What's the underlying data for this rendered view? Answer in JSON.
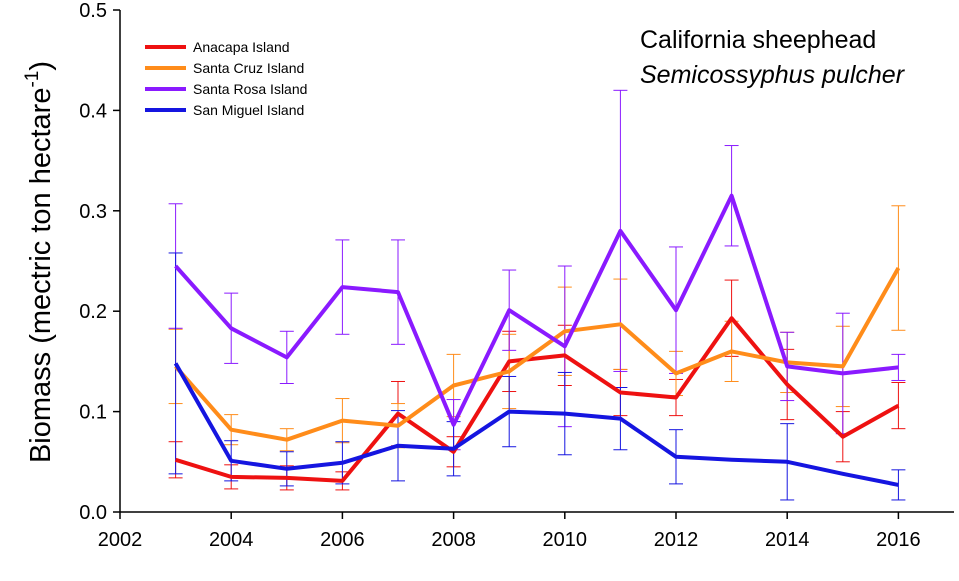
{
  "chart_data": {
    "type": "line",
    "title": "California sheephead",
    "subtitle": "Semicossyphus pulcher",
    "ylabel": "Biomass (mectric ton hectare",
    "ylabel_superscript": "-1",
    "ylabel_suffix": ")",
    "xlim": [
      2002,
      2017
    ],
    "ylim": [
      0,
      0.5
    ],
    "xticks": [
      "2002",
      "2004",
      "2006",
      "2008",
      "2010",
      "2012",
      "2014",
      "2016"
    ],
    "yticks": [
      "0.0",
      "0.1",
      "0.2",
      "0.3",
      "0.4",
      "0.5"
    ],
    "legend_position": "top-left",
    "error_bars": true,
    "series": [
      {
        "name": "Anacapa Island",
        "color": "#ee1111",
        "x": [
          2003,
          2004,
          2005,
          2006,
          2007,
          2008,
          2009,
          2010,
          2011,
          2012,
          2013,
          2014,
          2015,
          2016
        ],
        "y": [
          0.052,
          0.035,
          0.034,
          0.031,
          0.098,
          0.06,
          0.15,
          0.156,
          0.119,
          0.114,
          0.193,
          0.127,
          0.075,
          0.106
        ],
        "err": [
          0.018,
          0.012,
          0.012,
          0.009,
          0.032,
          0.015,
          0.03,
          0.03,
          0.023,
          0.018,
          0.038,
          0.035,
          0.025,
          0.023
        ]
      },
      {
        "name": "Santa Cruz Island",
        "color": "#ff8c1a",
        "x": [
          2003,
          2004,
          2005,
          2006,
          2007,
          2008,
          2009,
          2010,
          2011,
          2012,
          2013,
          2014,
          2015,
          2016
        ],
        "y": [
          0.145,
          0.082,
          0.072,
          0.091,
          0.086,
          0.126,
          0.14,
          0.18,
          0.187,
          0.138,
          0.16,
          0.149,
          0.145,
          0.243
        ],
        "err": [
          0.037,
          0.015,
          0.011,
          0.022,
          0.022,
          0.031,
          0.037,
          0.044,
          0.045,
          0.022,
          0.03,
          0.03,
          0.04,
          0.062
        ]
      },
      {
        "name": "Santa Rosa Island",
        "color": "#8a1aff",
        "x": [
          2003,
          2004,
          2005,
          2006,
          2007,
          2008,
          2009,
          2010,
          2011,
          2012,
          2013,
          2014,
          2015,
          2016
        ],
        "y": [
          0.245,
          0.183,
          0.154,
          0.224,
          0.219,
          0.087,
          0.201,
          0.165,
          0.28,
          0.201,
          0.315,
          0.145,
          0.138,
          0.144
        ],
        "err": [
          0.062,
          0.035,
          0.026,
          0.047,
          0.052,
          0.025,
          0.04,
          0.08,
          0.14,
          0.063,
          0.05,
          0.034,
          0.06,
          0.013
        ]
      },
      {
        "name": "San Miguel Island",
        "color": "#1515e0",
        "x": [
          2003,
          2004,
          2005,
          2006,
          2007,
          2008,
          2009,
          2010,
          2011,
          2012,
          2013,
          2014,
          2015,
          2016
        ],
        "y": [
          0.148,
          0.051,
          0.043,
          0.049,
          0.066,
          0.063,
          0.1,
          0.098,
          0.093,
          0.055,
          0.052,
          0.05,
          0.038,
          0.027
        ],
        "err": [
          0.11,
          0.02,
          0.017,
          0.021,
          0.035,
          0.027,
          0.035,
          0.041,
          0.031,
          0.027,
          0,
          0.038,
          0,
          0.015
        ]
      }
    ]
  }
}
